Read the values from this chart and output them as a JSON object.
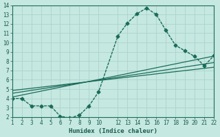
{
  "xlabel": "Humidex (Indice chaleur)",
  "bg_color": "#c5e8e0",
  "grid_color": "#a8cfc8",
  "line_color": "#1a6b5a",
  "xlim": [
    1,
    22
  ],
  "ylim": [
    2,
    14
  ],
  "xticks": [
    1,
    2,
    3,
    4,
    5,
    6,
    7,
    8,
    9,
    10,
    12,
    13,
    14,
    15,
    16,
    17,
    18,
    19,
    20,
    21,
    22
  ],
  "yticks": [
    2,
    3,
    4,
    5,
    6,
    7,
    8,
    9,
    10,
    11,
    12,
    13,
    14
  ],
  "main_x": [
    1,
    2,
    3,
    4,
    5,
    6,
    7,
    8,
    9,
    10,
    12,
    13,
    14,
    15,
    16,
    17,
    18,
    19,
    20,
    21,
    22
  ],
  "main_y": [
    4.0,
    4.0,
    3.2,
    3.2,
    3.2,
    2.1,
    1.9,
    2.2,
    3.2,
    4.7,
    10.7,
    12.1,
    13.1,
    13.7,
    13.0,
    11.3,
    9.7,
    9.1,
    8.5,
    7.5,
    8.6
  ],
  "trend1_x": [
    1,
    22
  ],
  "trend1_y": [
    4.15,
    8.55
  ],
  "trend2_x": [
    1,
    22
  ],
  "trend2_y": [
    4.55,
    7.85
  ],
  "trend3_x": [
    1,
    22
  ],
  "trend3_y": [
    4.85,
    7.35
  ],
  "font_color": "#1a5a50",
  "marker": "D",
  "markersize": 2.5,
  "linewidth": 1.0,
  "trend_linewidth": 0.9
}
